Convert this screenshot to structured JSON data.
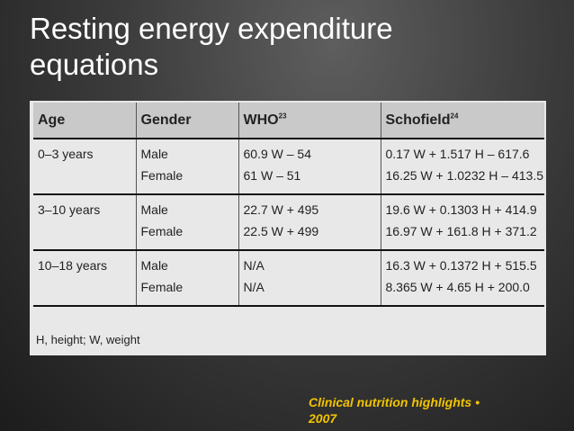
{
  "slide": {
    "title_line1": "Resting energy expenditure",
    "title_line2": "equations",
    "attribution_line1": "Clinical nutrition highlights •",
    "attribution_line2": "2007"
  },
  "table": {
    "headers": {
      "age": "Age",
      "gender": "Gender",
      "who": "WHO",
      "who_ref": "23",
      "schofield": "Schofield",
      "schofield_ref": "24"
    },
    "rows": [
      {
        "age": "0–3 years",
        "gender_male": "Male",
        "gender_female": "Female",
        "who_male": "60.9 W – 54",
        "who_female": "61 W – 51",
        "schofield_male": "0.17 W + 1.517 H – 617.6",
        "schofield_female": "16.25 W + 1.0232 H – 413.5"
      },
      {
        "age": "3–10 years",
        "gender_male": "Male",
        "gender_female": "Female",
        "who_male": "22.7 W + 495",
        "who_female": "22.5 W + 499",
        "schofield_male": "19.6 W + 0.1303 H + 414.9",
        "schofield_female": "16.97 W + 161.8 H + 371.2"
      },
      {
        "age": "10–18 years",
        "gender_male": "Male",
        "gender_female": "Female",
        "who_male": "N/A",
        "who_female": "N/A",
        "schofield_male": "16.3 W + 0.1372 H + 515.5",
        "schofield_female": "8.365 W + 4.65 H + 200.0"
      }
    ],
    "footnote": "H, height; W, weight"
  }
}
